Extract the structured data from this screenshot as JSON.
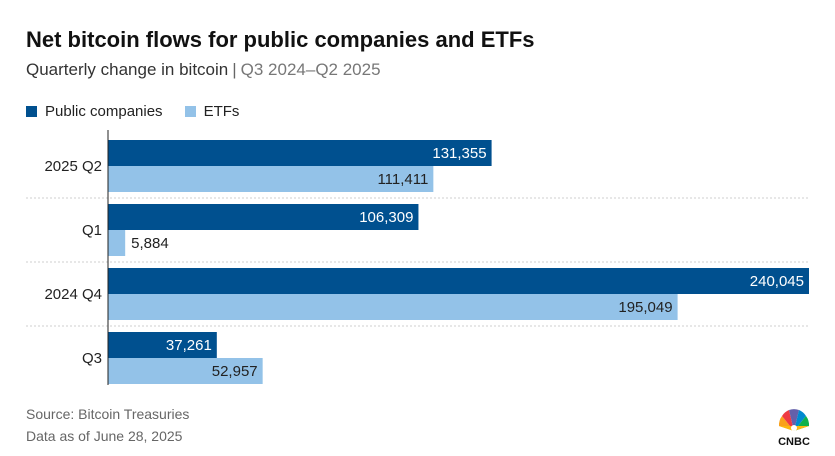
{
  "title": "Net bitcoin flows for public companies and ETFs",
  "subtitle": "Quarterly change in bitcoin",
  "subtitle_sep": "|",
  "subtitle_range": "Q3 2024–Q2 2025",
  "footer": {
    "source": "Source: Bitcoin Treasuries",
    "as_of": "Data as of June 28, 2025"
  },
  "logo": {
    "text": "CNBC",
    "icon": "nbc-peacock-icon"
  },
  "colors": {
    "public_companies": "#00508f",
    "etfs": "#93c2e8",
    "gridline": "#cfcfcf"
  },
  "chart_data": {
    "type": "bar",
    "orientation": "horizontal",
    "title": "Net bitcoin flows for public companies and ETFs",
    "subtitle": "Quarterly change in bitcoin | Q3 2024–Q2 2025",
    "categories": [
      "2025 Q2",
      "Q1",
      "2024 Q4",
      "Q3"
    ],
    "series": [
      {
        "name": "Public companies",
        "values": [
          131355,
          106309,
          240045,
          37261
        ],
        "labels": [
          "131,355",
          "106,309",
          "240,045",
          "37,261"
        ]
      },
      {
        "name": "ETFs",
        "values": [
          111411,
          5884,
          195049,
          52957
        ],
        "labels": [
          "111,411",
          "5,884",
          "195,049",
          "52,957"
        ]
      }
    ],
    "xlim": [
      0,
      240045
    ],
    "legend": "top-left",
    "grid": false
  }
}
